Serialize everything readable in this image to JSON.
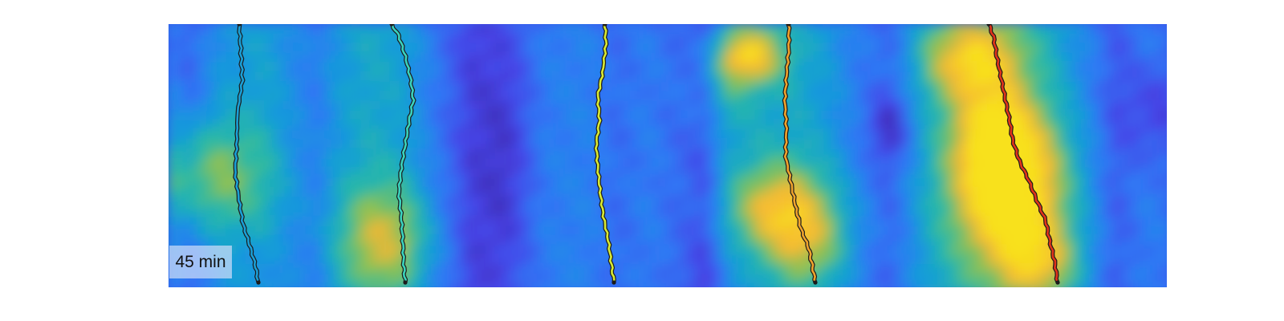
{
  "time_label": "45 min",
  "colormap": [
    "#3e26a8",
    "#4645e8",
    "#2e79f5",
    "#139dd8",
    "#28b8a8",
    "#8cc154",
    "#f5b735",
    "#f8e11b"
  ],
  "tracks": [
    {
      "color": "#1a9fd6"
    },
    {
      "color": "#3ad3bd"
    },
    {
      "color": "#d8ea34"
    },
    {
      "color": "#f0a22c"
    },
    {
      "color": "#e0331b"
    }
  ]
}
